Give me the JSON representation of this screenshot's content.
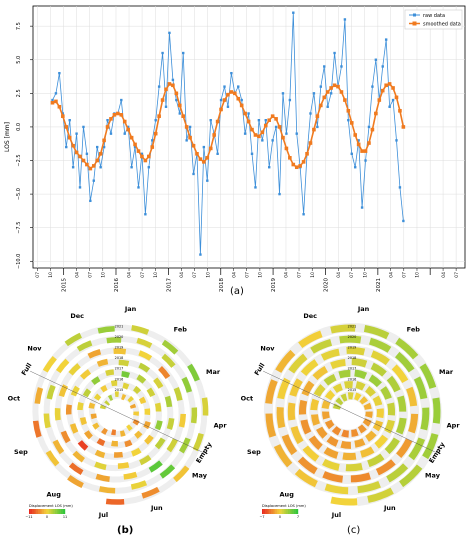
{
  "chart_data": [
    {
      "panel_label": "(a)",
      "type": "line",
      "ylabel": "LOS [mm]",
      "ylim": [
        -10.5,
        9
      ],
      "yticks": [
        "−10.0",
        "−7.5",
        "−5.0",
        "−2.5",
        "0.0",
        "2.5",
        "5.0",
        "7.5"
      ],
      "ytick_values": [
        -10,
        -7.5,
        -5,
        -2.5,
        0,
        2.5,
        5,
        7.5
      ],
      "xlim": [
        "2014-06-01",
        "2022-09-01"
      ],
      "month_tick_labels": [
        "07",
        "10",
        "04",
        "07",
        "10",
        "04",
        "07",
        "10",
        "04",
        "07",
        "10",
        "04",
        "07",
        "10",
        "04",
        "07",
        "10",
        "04",
        "07",
        "10",
        "04",
        "07",
        "10",
        "04",
        "07"
      ],
      "year_tick_labels": [
        "2015",
        "2016",
        "2017",
        "2018",
        "2019",
        "2020",
        "2021"
      ],
      "legend": {
        "placement": "top-right",
        "entries": [
          "raw data",
          "smoothed data"
        ]
      },
      "grid": true,
      "series": [
        {
          "name": "raw data",
          "color": "#3d8fd9",
          "x": [
            "2014-10-15",
            "2014-11-08",
            "2014-12-02",
            "2014-12-26",
            "2015-01-19",
            "2015-02-12",
            "2015-03-08",
            "2015-04-01",
            "2015-04-25",
            "2015-05-19",
            "2015-06-12",
            "2015-07-06",
            "2015-07-30",
            "2015-08-23",
            "2015-09-16",
            "2015-10-10",
            "2015-11-03",
            "2015-11-27",
            "2015-12-21",
            "2016-01-14",
            "2016-02-07",
            "2016-03-02",
            "2016-03-26",
            "2016-04-19",
            "2016-05-13",
            "2016-06-06",
            "2016-06-30",
            "2016-07-24",
            "2016-08-17",
            "2016-09-10",
            "2016-10-04",
            "2016-10-28",
            "2016-11-21",
            "2016-12-15",
            "2017-01-08",
            "2017-02-01",
            "2017-02-25",
            "2017-03-21",
            "2017-04-14",
            "2017-05-08",
            "2017-06-01",
            "2017-06-25",
            "2017-07-19",
            "2017-08-12",
            "2017-09-05",
            "2017-09-29",
            "2017-10-23",
            "2017-11-16",
            "2017-12-10",
            "2018-01-03",
            "2018-01-27",
            "2018-02-20",
            "2018-03-16",
            "2018-04-09",
            "2018-05-03",
            "2018-05-27",
            "2018-06-20",
            "2018-07-14",
            "2018-08-07",
            "2018-08-31",
            "2018-09-24",
            "2018-10-18",
            "2018-11-11",
            "2018-12-05",
            "2018-12-29",
            "2019-01-22",
            "2019-02-15",
            "2019-03-11",
            "2019-04-04",
            "2019-04-28",
            "2019-05-22",
            "2019-06-15",
            "2019-07-09",
            "2019-08-02",
            "2019-08-26",
            "2019-09-19",
            "2019-10-13",
            "2019-11-06",
            "2019-11-30",
            "2019-12-24",
            "2020-01-17",
            "2020-02-10",
            "2020-03-05",
            "2020-03-29",
            "2020-04-22",
            "2020-05-16",
            "2020-06-09",
            "2020-07-03",
            "2020-07-27",
            "2020-08-20",
            "2020-09-13",
            "2020-10-07",
            "2020-10-31",
            "2020-11-24",
            "2020-12-18",
            "2021-01-11",
            "2021-02-04",
            "2021-02-28",
            "2021-03-24",
            "2021-04-17",
            "2021-05-11",
            "2021-06-04",
            "2021-06-28"
          ],
          "y": [
            2.0,
            2.5,
            4.0,
            1.0,
            -1.5,
            0.5,
            -3.0,
            -0.5,
            -4.5,
            0.0,
            -2.0,
            -5.5,
            -4.0,
            -1.5,
            -3.0,
            -1.5,
            0.5,
            -0.5,
            1.0,
            1.0,
            2.0,
            -0.5,
            0.0,
            -3.0,
            -1.5,
            -4.5,
            -2.0,
            -6.5,
            -3.0,
            -1.0,
            0.5,
            3.0,
            5.5,
            1.5,
            7.0,
            3.5,
            2.0,
            1.0,
            5.5,
            -1.0,
            0.0,
            -3.5,
            -2.0,
            -9.5,
            -1.5,
            -4.0,
            0.5,
            -0.5,
            -2.0,
            2.0,
            3.0,
            1.5,
            4.0,
            2.5,
            3.0,
            2.0,
            -0.5,
            1.0,
            -2.0,
            -4.5,
            0.5,
            -1.0,
            0.5,
            -3.0,
            -1.0,
            0.0,
            -5.0,
            2.5,
            -0.5,
            2.0,
            8.5,
            -0.5,
            -3.0,
            -6.5,
            -2.0,
            1.0,
            2.5,
            0.0,
            3.0,
            4.5,
            1.5,
            2.5,
            5.5,
            3.0,
            4.5,
            8.0,
            0.5,
            -2.0,
            -3.0,
            -1.0,
            -6.0,
            -2.5,
            0.0,
            3.0,
            5.0,
            2.0,
            4.5,
            6.5,
            1.5,
            2.0,
            -1.0,
            -4.5,
            -7.0
          ]
        },
        {
          "name": "smoothed data",
          "color": "#f07a1f",
          "x": [
            "2014-10-15",
            "2014-11-08",
            "2014-12-02",
            "2014-12-26",
            "2015-01-19",
            "2015-02-12",
            "2015-03-08",
            "2015-04-01",
            "2015-04-25",
            "2015-05-19",
            "2015-06-12",
            "2015-07-06",
            "2015-07-30",
            "2015-08-23",
            "2015-09-16",
            "2015-10-10",
            "2015-11-03",
            "2015-11-27",
            "2015-12-21",
            "2016-01-14",
            "2016-02-07",
            "2016-03-02",
            "2016-03-26",
            "2016-04-19",
            "2016-05-13",
            "2016-06-06",
            "2016-06-30",
            "2016-07-24",
            "2016-08-17",
            "2016-09-10",
            "2016-10-04",
            "2016-10-28",
            "2016-11-21",
            "2016-12-15",
            "2017-01-08",
            "2017-02-01",
            "2017-02-25",
            "2017-03-21",
            "2017-04-14",
            "2017-05-08",
            "2017-06-01",
            "2017-06-25",
            "2017-07-19",
            "2017-08-12",
            "2017-09-05",
            "2017-09-29",
            "2017-10-23",
            "2017-11-16",
            "2017-12-10",
            "2018-01-03",
            "2018-01-27",
            "2018-02-20",
            "2018-03-16",
            "2018-04-09",
            "2018-05-03",
            "2018-05-27",
            "2018-06-20",
            "2018-07-14",
            "2018-08-07",
            "2018-08-31",
            "2018-09-24",
            "2018-10-18",
            "2018-11-11",
            "2018-12-05",
            "2018-12-29",
            "2019-01-22",
            "2019-02-15",
            "2019-03-11",
            "2019-04-04",
            "2019-04-28",
            "2019-05-22",
            "2019-06-15",
            "2019-07-09",
            "2019-08-02",
            "2019-08-26",
            "2019-09-19",
            "2019-10-13",
            "2019-11-06",
            "2019-11-30",
            "2019-12-24",
            "2020-01-17",
            "2020-02-10",
            "2020-03-05",
            "2020-03-29",
            "2020-04-22",
            "2020-05-16",
            "2020-06-09",
            "2020-07-03",
            "2020-07-27",
            "2020-08-20",
            "2020-09-13",
            "2020-10-07",
            "2020-10-31",
            "2020-11-24",
            "2020-12-18",
            "2021-01-11",
            "2021-02-04",
            "2021-02-28",
            "2021-03-24",
            "2021-04-17",
            "2021-05-11",
            "2021-06-04",
            "2021-06-28"
          ],
          "y": [
            1.8,
            1.9,
            1.5,
            0.8,
            0.0,
            -0.8,
            -1.4,
            -1.9,
            -2.2,
            -2.5,
            -2.8,
            -3.1,
            -2.9,
            -2.5,
            -2.0,
            -1.0,
            0.0,
            0.6,
            0.9,
            1.0,
            0.9,
            0.4,
            -0.2,
            -0.8,
            -1.3,
            -1.8,
            -2.2,
            -2.5,
            -2.2,
            -1.5,
            -0.5,
            0.8,
            2.0,
            2.8,
            3.2,
            3.1,
            2.5,
            1.6,
            0.8,
            0.0,
            -0.8,
            -1.4,
            -2.0,
            -2.4,
            -2.6,
            -2.3,
            -1.6,
            -0.6,
            0.4,
            1.3,
            2.0,
            2.4,
            2.6,
            2.5,
            2.1,
            1.6,
            1.0,
            0.4,
            -0.2,
            -0.6,
            -0.7,
            -0.4,
            0.1,
            0.5,
            0.8,
            0.6,
            0.0,
            -0.8,
            -1.6,
            -2.3,
            -2.8,
            -3.0,
            -2.9,
            -2.6,
            -2.0,
            -1.2,
            -0.2,
            0.8,
            1.6,
            2.2,
            2.6,
            2.9,
            3.1,
            3.0,
            2.6,
            2.0,
            1.2,
            0.3,
            -0.6,
            -1.3,
            -1.8,
            -1.8,
            -1.2,
            -0.2,
            1.0,
            2.0,
            2.7,
            3.1,
            3.2,
            2.9,
            2.2,
            1.2,
            0.0
          ]
        }
      ]
    },
    {
      "panel_label": "(b)",
      "type": "heatmap",
      "layout": "circular spiral calendar",
      "month_labels": [
        "Jan",
        "Feb",
        "Mar",
        "Apr",
        "May",
        "Jun",
        "Jul",
        "Aug",
        "Sep",
        "Oct",
        "Nov",
        "Dec"
      ],
      "fill_labels": {
        "full": "Full",
        "empty": "Empty"
      },
      "ring_year_labels": [
        "2021",
        "2020",
        "2019",
        "2018",
        "2017",
        "2016",
        "2015"
      ],
      "colorbar": {
        "title": "Displacement LOS (mm)",
        "ticks": [
          "−11",
          "0",
          "11"
        ],
        "range": [
          -11,
          11
        ],
        "colors": [
          "#e8281e",
          "#f2d33a",
          "#2fc53a"
        ]
      }
    },
    {
      "panel_label": "(c)",
      "type": "heatmap",
      "layout": "circular spiral calendar",
      "month_labels": [
        "Jan",
        "Feb",
        "Mar",
        "Apr",
        "May",
        "Jun",
        "Jul",
        "Aug",
        "Sep",
        "Oct",
        "Nov",
        "Dec"
      ],
      "fill_labels": {
        "full": "Full",
        "empty": "Empty"
      },
      "ring_year_labels": [
        "2021",
        "2020",
        "2019",
        "2018",
        "2017",
        "2016",
        "2015"
      ],
      "colorbar": {
        "title": "Displacement LOS (mm)",
        "ticks": [
          "−7",
          "0",
          "7"
        ],
        "range": [
          -7,
          7
        ],
        "colors": [
          "#e8281e",
          "#f2d33a",
          "#2fc53a"
        ]
      }
    }
  ]
}
